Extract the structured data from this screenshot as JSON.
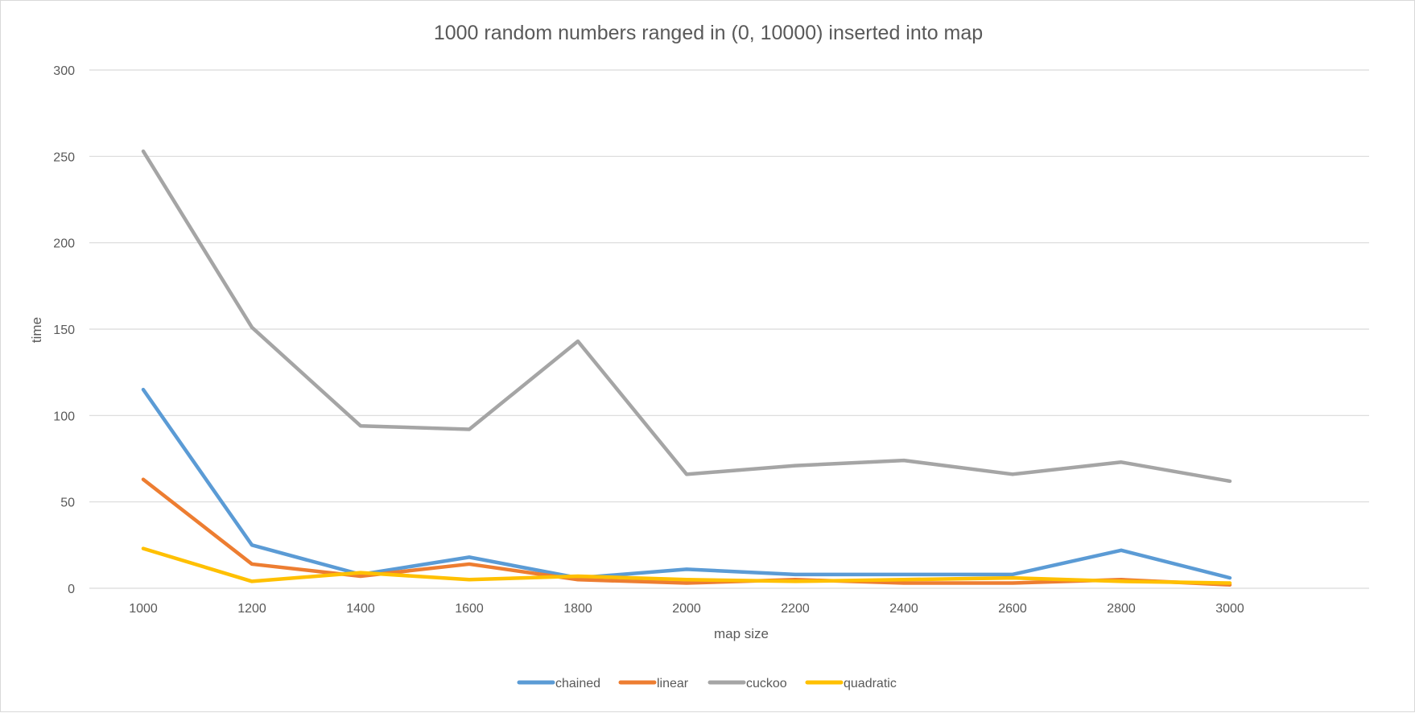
{
  "chart_data": {
    "type": "line",
    "title": "1000 random numbers ranged in (0, 10000) inserted into map",
    "xlabel": "map size",
    "ylabel": "time",
    "categories": [
      "1000",
      "1200",
      "1400",
      "1600",
      "1800",
      "2000",
      "2200",
      "2400",
      "2600",
      "2800",
      "3000"
    ],
    "ylim": [
      0,
      300
    ],
    "yticks": [
      "0",
      "50",
      "100",
      "150",
      "200",
      "250",
      "300"
    ],
    "grid": true,
    "legend_position": "bottom",
    "series": [
      {
        "name": "chained",
        "color": "#5b9bd5",
        "values": [
          115,
          25,
          8,
          18,
          6,
          11,
          8,
          8,
          8,
          22,
          6
        ]
      },
      {
        "name": "linear",
        "color": "#ed7d31",
        "values": [
          63,
          14,
          7,
          14,
          5,
          3,
          5,
          3,
          3,
          5,
          2
        ]
      },
      {
        "name": "cuckoo",
        "color": "#a5a5a5",
        "values": [
          253,
          151,
          94,
          92,
          143,
          66,
          71,
          74,
          66,
          73,
          62
        ]
      },
      {
        "name": "quadratic",
        "color": "#ffc000",
        "values": [
          23,
          4,
          9,
          5,
          7,
          5,
          4,
          5,
          6,
          4,
          3
        ]
      }
    ]
  }
}
